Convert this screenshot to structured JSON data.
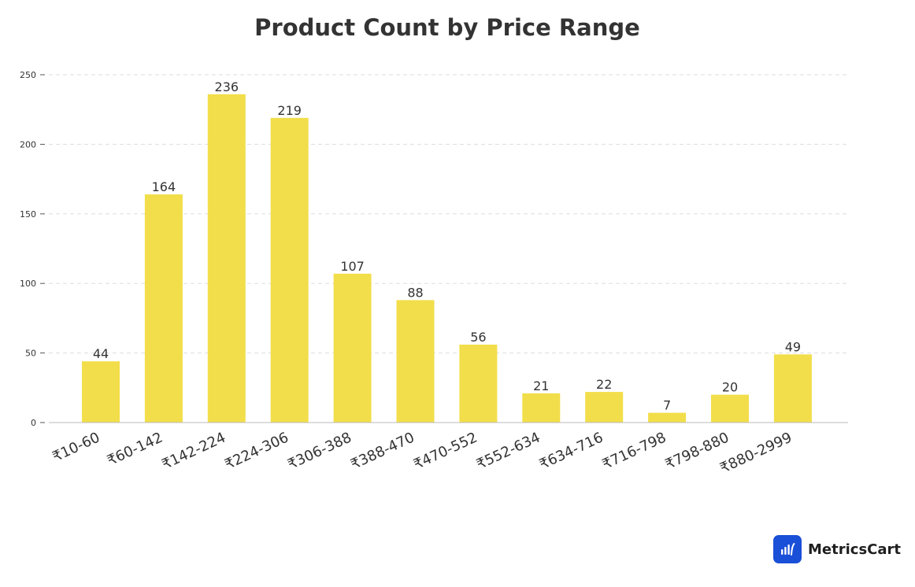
{
  "chart_data": {
    "type": "bar",
    "title": "Product Count by Price Range",
    "xlabel": "",
    "ylabel": "",
    "categories": [
      "₹10-60",
      "₹60-142",
      "₹142-224",
      "₹224-306",
      "₹306-388",
      "₹388-470",
      "₹470-552",
      "₹552-634",
      "₹634-716",
      "₹716-798",
      "₹798-880",
      "₹880-2999"
    ],
    "values": [
      44,
      164,
      236,
      219,
      107,
      88,
      56,
      21,
      22,
      7,
      20,
      49
    ],
    "ylim": [
      0,
      250
    ],
    "yticks": [
      0,
      50,
      100,
      150,
      200,
      250
    ],
    "grid": true,
    "legend": "none",
    "bar_color": "#f2de4a"
  },
  "brand": {
    "name": "MetricsCart",
    "icon": "bar-chart-icon",
    "color": "#1a4fd8"
  }
}
